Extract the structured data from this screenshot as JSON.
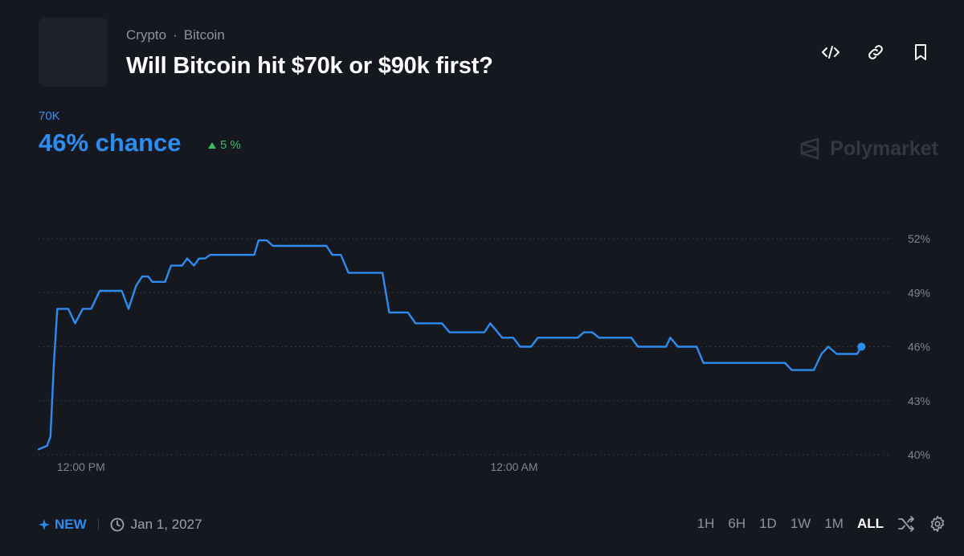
{
  "breadcrumb": {
    "category": "Crypto",
    "separator": "·",
    "subcategory": "Bitcoin"
  },
  "title": "Will Bitcoin hit $70k or $90k first?",
  "actions": [
    {
      "name": "embed-icon"
    },
    {
      "name": "link-icon"
    },
    {
      "name": "bookmark-icon"
    }
  ],
  "outcome": {
    "label": "70K",
    "chance": "46% chance",
    "delta": "5 %",
    "delta_direction": "up"
  },
  "watermark": "Polymarket",
  "footer": {
    "new_label": "NEW",
    "date": "Jan 1, 2027",
    "ranges": [
      "1H",
      "6H",
      "1D",
      "1W",
      "1M",
      "ALL"
    ],
    "active_range": "ALL"
  },
  "colors": {
    "line": "#2d8cf0",
    "grid": "#3a4048",
    "axis_text": "#7d858f",
    "up": "#3dbb63",
    "background": "#15191f"
  },
  "chart_data": {
    "type": "line",
    "title": "",
    "xlabel": "",
    "ylabel": "",
    "ylim": [
      40,
      52
    ],
    "yticks": [
      40,
      43,
      46,
      49,
      52
    ],
    "ytick_format": "%",
    "x_tick_labels": [
      "12:00 PM",
      "12:00 AM"
    ],
    "x_tick_positions": [
      5,
      56
    ],
    "xlim": [
      0,
      100
    ],
    "grid": true,
    "series": [
      {
        "values": [
          [
            0,
            40.3
          ],
          [
            1,
            40.5
          ],
          [
            1.4,
            41.0
          ],
          [
            1.8,
            45.0
          ],
          [
            2.2,
            48.1
          ],
          [
            3.5,
            48.1
          ],
          [
            4.3,
            47.3
          ],
          [
            5.2,
            48.1
          ],
          [
            6.2,
            48.1
          ],
          [
            7.2,
            49.1
          ],
          [
            9.8,
            49.1
          ],
          [
            10.6,
            48.1
          ],
          [
            11.5,
            49.4
          ],
          [
            12.2,
            49.9
          ],
          [
            12.9,
            49.9
          ],
          [
            13.4,
            49.6
          ],
          [
            14.9,
            49.6
          ],
          [
            15.6,
            50.5
          ],
          [
            16.9,
            50.5
          ],
          [
            17.5,
            50.9
          ],
          [
            18.3,
            50.5
          ],
          [
            18.9,
            50.9
          ],
          [
            19.6,
            50.9
          ],
          [
            20.2,
            51.1
          ],
          [
            25.4,
            51.1
          ],
          [
            25.9,
            51.9
          ],
          [
            26.9,
            51.9
          ],
          [
            27.6,
            51.6
          ],
          [
            33.9,
            51.6
          ],
          [
            34.6,
            51.1
          ],
          [
            35.6,
            51.1
          ],
          [
            36.5,
            50.1
          ],
          [
            40.5,
            50.1
          ],
          [
            41.3,
            47.9
          ],
          [
            43.5,
            47.9
          ],
          [
            44.4,
            47.3
          ],
          [
            47.5,
            47.3
          ],
          [
            48.4,
            46.8
          ],
          [
            52.5,
            46.8
          ],
          [
            53.2,
            47.3
          ],
          [
            54.6,
            46.5
          ],
          [
            55.9,
            46.5
          ],
          [
            56.7,
            46.0
          ],
          [
            58.0,
            46.0
          ],
          [
            58.8,
            46.5
          ],
          [
            63.5,
            46.5
          ],
          [
            64.2,
            46.8
          ],
          [
            65.2,
            46.8
          ],
          [
            66.0,
            46.5
          ],
          [
            69.8,
            46.5
          ],
          [
            70.6,
            46.0
          ],
          [
            73.9,
            46.0
          ],
          [
            74.4,
            46.5
          ],
          [
            75.3,
            46.0
          ],
          [
            77.5,
            46.0
          ],
          [
            78.3,
            45.1
          ],
          [
            87.9,
            45.1
          ],
          [
            88.7,
            44.7
          ],
          [
            91.3,
            44.7
          ],
          [
            92.2,
            45.6
          ],
          [
            93.0,
            46.0
          ],
          [
            94.0,
            45.6
          ],
          [
            96.4,
            45.6
          ],
          [
            96.9,
            46.0
          ]
        ]
      }
    ]
  }
}
